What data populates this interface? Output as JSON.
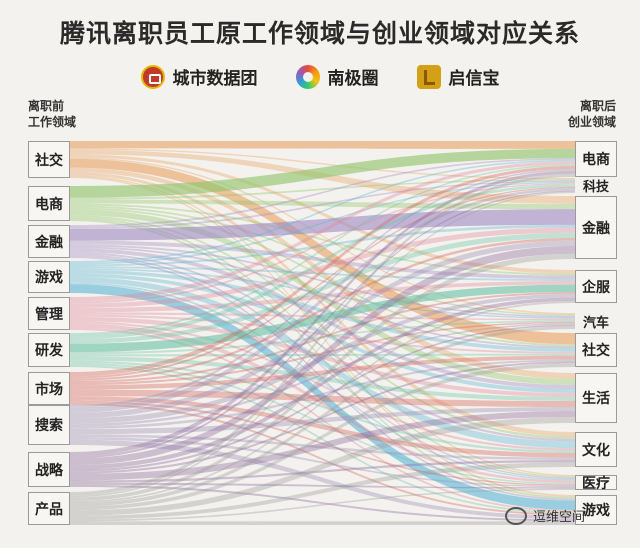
{
  "title": "腾讯离职员工原工作领域与创业领域对应关系",
  "sources": [
    {
      "icon": "city-data-group-logo",
      "label": "城市数据团"
    },
    {
      "icon": "south-pole-circle-logo",
      "label": "南极圈"
    },
    {
      "icon": "qixinbao-logo",
      "label": "启信宝"
    }
  ],
  "left_title": [
    "离职前",
    "工作领域"
  ],
  "right_title": [
    "离职后",
    "创业领域"
  ],
  "left_nodes": [
    "社交",
    "电商",
    "金融",
    "游戏",
    "管理",
    "研发",
    "市场",
    "搜索",
    "战略",
    "产品"
  ],
  "right_nodes": [
    "电商",
    "科技",
    "金融",
    "企服",
    "汽车",
    "社交",
    "生活",
    "文化",
    "医疗",
    "游戏"
  ],
  "watermark": "逗维空间",
  "colors": {
    "社交": "#e8a466",
    "电商": "#8fc46a",
    "金融": "#a08cc4",
    "游戏": "#5fb8d6",
    "管理": "#e38a9c",
    "研发": "#6cc4a8",
    "市场": "#d4645a",
    "搜索": "#9b8fb8",
    "战略": "#8c6a9a",
    "产品": "#9e9e9e"
  }
}
